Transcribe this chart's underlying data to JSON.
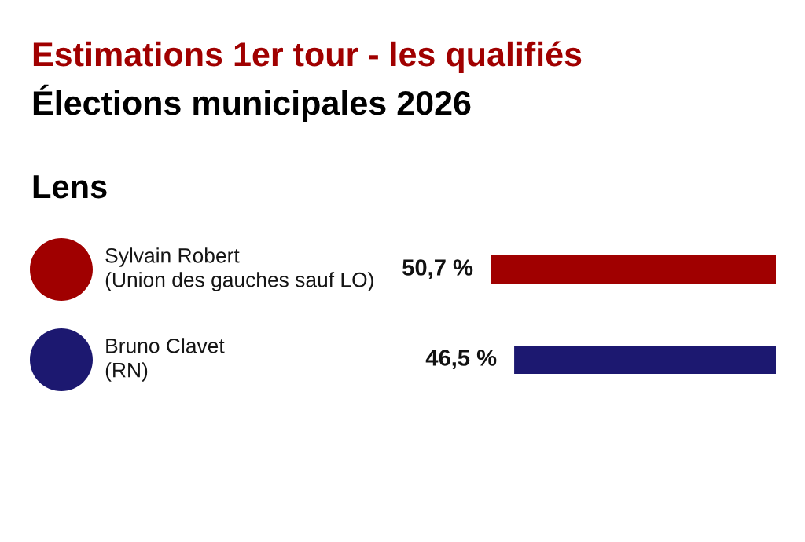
{
  "chart_data": {
    "type": "bar",
    "orientation": "horizontal",
    "title": "Estimations 1er tour - les qualifiés",
    "subtitle": "Élections municipales 2026",
    "annotations": [
      "Lens"
    ],
    "categories": [
      "Sylvain Robert\n(Union des gauches sauf LO)",
      "Bruno Clavet\n(RN)"
    ],
    "values": [
      50.7,
      46.5
    ],
    "colors": [
      "#a00000",
      "#1c1870"
    ],
    "value_labels": [
      "50,7 %",
      "46,5 %"
    ],
    "tick_labels": "y"
  }
}
